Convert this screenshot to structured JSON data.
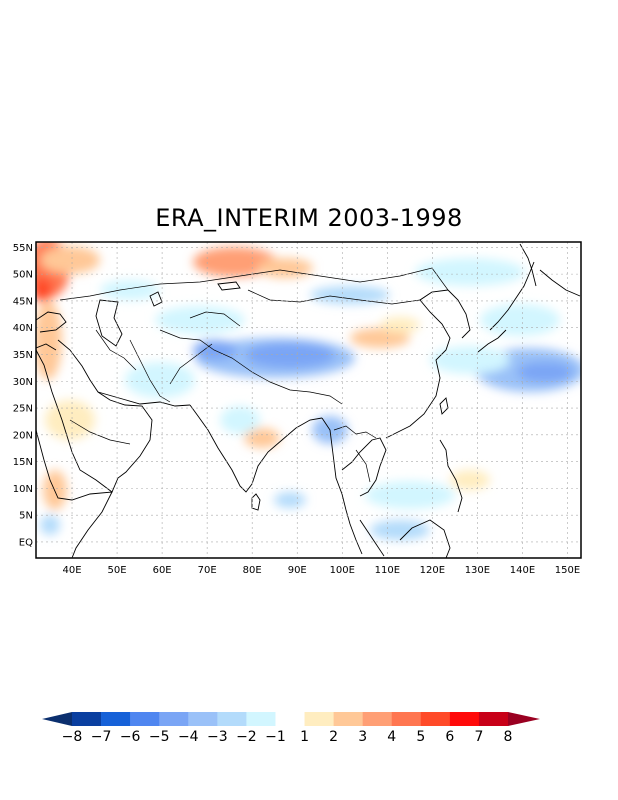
{
  "title": "ERA_INTERIM 2003-1998",
  "map": {
    "lon_range": [
      32,
      153
    ],
    "lat_range": [
      -3,
      56
    ],
    "lat_labels": [
      "55N",
      "50N",
      "45N",
      "40N",
      "35N",
      "30N",
      "25N",
      "20N",
      "15N",
      "10N",
      "5N",
      "EQ"
    ],
    "lon_labels": [
      "40E",
      "50E",
      "60E",
      "70E",
      "80E",
      "90E",
      "100E",
      "110E",
      "120E",
      "130E",
      "140E",
      "150E"
    ],
    "grid": true,
    "projection": "lat-lon"
  },
  "anomaly_fields": [
    {
      "name": "europe-north-warm",
      "lon": 36,
      "lat": 52,
      "value": 3
    },
    {
      "name": "mongolia-west-warm",
      "lon": 72,
      "lat": 50,
      "value": 3
    },
    {
      "name": "kazakhstan-cold",
      "lon": 78,
      "lat": 44,
      "value": -2
    },
    {
      "name": "tibet-cold",
      "lon": 90,
      "lat": 34,
      "value": -4
    },
    {
      "name": "karakoram-cold",
      "lon": 72,
      "lat": 36,
      "value": -4
    },
    {
      "name": "china-north-warm",
      "lon": 103,
      "lat": 38,
      "value": 2
    },
    {
      "name": "pacific-cold",
      "lon": 135,
      "lat": 31,
      "value": -3
    },
    {
      "name": "japan-cold",
      "lon": 132,
      "lat": 36,
      "value": -2
    },
    {
      "name": "arabia-warm",
      "lon": 42,
      "lat": 22,
      "value": 2
    },
    {
      "name": "india-warm",
      "lon": 80,
      "lat": 20,
      "value": 2
    },
    {
      "name": "indochina-cold",
      "lon": 108,
      "lat": 10,
      "value": -2
    },
    {
      "name": "south-cold",
      "lon": 115,
      "lat": 3,
      "value": -2
    }
  ],
  "colorbar": {
    "labels": [
      "-8",
      "-7",
      "-6",
      "-5",
      "-4",
      "-3",
      "-2",
      "-1",
      "1",
      "2",
      "3",
      "4",
      "5",
      "6",
      "7",
      "8"
    ],
    "colors": [
      "#0b2f6e",
      "#0a3fa0",
      "#1661d8",
      "#4f86f0",
      "#7aa5f5",
      "#9ac1f8",
      "#b3dbfb",
      "#d2f6ff",
      "#ffffff",
      "#ffedc0",
      "#ffc897",
      "#ff9f75",
      "#ff7650",
      "#ff4a28",
      "#ff0a0a",
      "#c80018",
      "#9a0021"
    ]
  }
}
